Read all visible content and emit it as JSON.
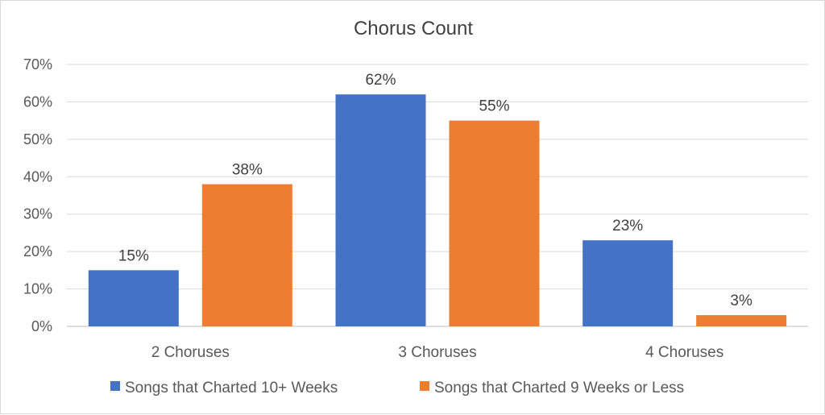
{
  "chart_data": {
    "type": "bar",
    "title": "Chorus Count",
    "categories": [
      "2 Choruses",
      "3 Choruses",
      "4 Choruses"
    ],
    "series": [
      {
        "name": "Songs that Charted 10+ Weeks",
        "values": [
          15,
          62,
          23
        ],
        "labels": [
          "15%",
          "62%",
          "23%"
        ],
        "color": "#4472C4"
      },
      {
        "name": "Songs that Charted 9 Weeks or Less",
        "values": [
          38,
          55,
          3
        ],
        "labels": [
          "38%",
          "55%",
          "3%"
        ],
        "color": "#ED7D31"
      }
    ],
    "ylim": [
      0,
      70
    ],
    "yticks": [
      0,
      10,
      20,
      30,
      40,
      50,
      60,
      70
    ],
    "ytick_labels": [
      "0%",
      "10%",
      "20%",
      "30%",
      "40%",
      "50%",
      "60%",
      "70%"
    ],
    "grid": true,
    "legend_position": "bottom"
  }
}
